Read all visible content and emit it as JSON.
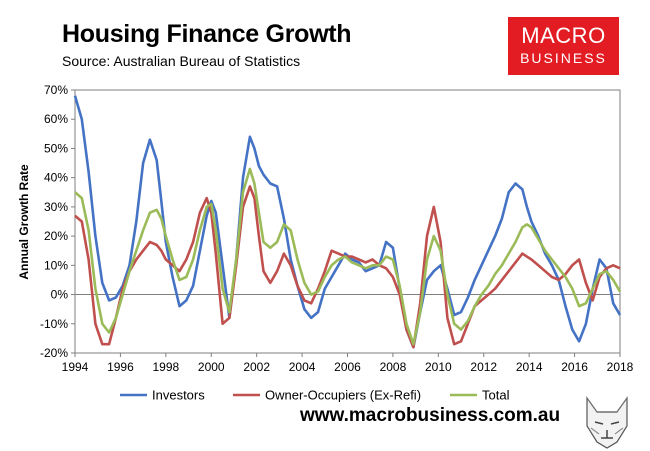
{
  "header": {
    "title": "Housing Finance Growth",
    "subtitle": "Source: Australian Bureau of Statistics",
    "logo_line1": "MACRO",
    "logo_line2": "BUSINESS",
    "website": "www.macrobusiness.com.au"
  },
  "colors": {
    "investors": "#4472c4",
    "owner_occupiers": "#c0504d",
    "total": "#9bbb59",
    "logo_bg": "#e31b23"
  },
  "chart_data": {
    "type": "line",
    "title": "Housing Finance Growth",
    "xlabel": "",
    "ylabel": "Annual Growth Rate",
    "xlim": [
      1994,
      2018
    ],
    "ylim": [
      -20,
      70
    ],
    "xticks": [
      1994,
      1996,
      1998,
      2000,
      2002,
      2004,
      2006,
      2008,
      2010,
      2012,
      2014,
      2016,
      2018
    ],
    "xtick_labels": [
      "1994",
      "1996",
      "1998",
      "2000",
      "2002",
      "2004",
      "2006",
      "2008",
      "2010",
      "2012",
      "2014",
      "2016",
      "2018"
    ],
    "yticks": [
      -20,
      -10,
      0,
      10,
      20,
      30,
      40,
      50,
      60,
      70
    ],
    "ytick_labels": [
      "-20%",
      "-10%",
      "0%",
      "10%",
      "20%",
      "30%",
      "40%",
      "50%",
      "60%",
      "70%"
    ],
    "legend_position": "bottom",
    "series": [
      {
        "name": "Investors",
        "color": "#4472c4",
        "x": [
          1994.0,
          1994.3,
          1994.6,
          1994.9,
          1995.2,
          1995.5,
          1995.8,
          1996.1,
          1996.4,
          1996.7,
          1997.0,
          1997.3,
          1997.6,
          1997.8,
          1998.0,
          1998.3,
          1998.6,
          1998.9,
          1999.2,
          1999.5,
          1999.8,
          2000.0,
          2000.2,
          2000.5,
          2000.8,
          2001.1,
          2001.4,
          2001.7,
          2001.9,
          2002.1,
          2002.3,
          2002.6,
          2002.9,
          2003.2,
          2003.5,
          2003.8,
          2004.1,
          2004.4,
          2004.7,
          2005.0,
          2005.3,
          2005.6,
          2005.9,
          2006.2,
          2006.5,
          2006.8,
          2007.1,
          2007.4,
          2007.7,
          2008.0,
          2008.3,
          2008.6,
          2008.9,
          2009.2,
          2009.5,
          2009.8,
          2010.1,
          2010.4,
          2010.7,
          2011.0,
          2011.3,
          2011.6,
          2011.9,
          2012.2,
          2012.5,
          2012.8,
          2013.1,
          2013.4,
          2013.7,
          2013.9,
          2014.1,
          2014.4,
          2014.7,
          2015.0,
          2015.3,
          2015.6,
          2015.9,
          2016.2,
          2016.5,
          2016.8,
          2017.1,
          2017.4,
          2017.7,
          2018.0
        ],
        "values": [
          68,
          60,
          42,
          20,
          4,
          -2,
          -1,
          3,
          10,
          25,
          45,
          53,
          46,
          32,
          18,
          6,
          -4,
          -2,
          3,
          15,
          27,
          32,
          28,
          10,
          -8,
          12,
          40,
          54,
          50,
          44,
          41,
          38,
          37,
          26,
          12,
          3,
          -5,
          -8,
          -6,
          2,
          6,
          10,
          14,
          12,
          11,
          8,
          9,
          10,
          18,
          16,
          2,
          -12,
          -18,
          -6,
          5,
          8,
          10,
          2,
          -7,
          -6,
          -1,
          5,
          10,
          15,
          20,
          26,
          35,
          38,
          36,
          30,
          25,
          20,
          14,
          10,
          5,
          -4,
          -12,
          -16,
          -10,
          2,
          12,
          9,
          -3,
          -7
        ]
      },
      {
        "name": "Owner-Occupiers (Ex-Refi)",
        "color": "#c0504d",
        "x": [
          1994.0,
          1994.3,
          1994.6,
          1994.9,
          1995.2,
          1995.5,
          1995.8,
          1996.1,
          1996.4,
          1996.7,
          1997.0,
          1997.3,
          1997.6,
          1997.8,
          1998.0,
          1998.3,
          1998.6,
          1998.9,
          1999.2,
          1999.5,
          1999.8,
          2000.0,
          2000.2,
          2000.5,
          2000.8,
          2001.1,
          2001.4,
          2001.7,
          2001.9,
          2002.1,
          2002.3,
          2002.6,
          2002.9,
          2003.2,
          2003.5,
          2003.8,
          2004.1,
          2004.4,
          2004.7,
          2005.0,
          2005.3,
          2005.6,
          2005.9,
          2006.2,
          2006.5,
          2006.8,
          2007.1,
          2007.4,
          2007.7,
          2008.0,
          2008.3,
          2008.6,
          2008.9,
          2009.2,
          2009.5,
          2009.8,
          2010.1,
          2010.4,
          2010.7,
          2011.0,
          2011.3,
          2011.6,
          2011.9,
          2012.2,
          2012.5,
          2012.8,
          2013.1,
          2013.4,
          2013.7,
          2013.9,
          2014.1,
          2014.4,
          2014.7,
          2015.0,
          2015.3,
          2015.6,
          2015.9,
          2016.2,
          2016.5,
          2016.8,
          2017.1,
          2017.4,
          2017.7,
          2018.0
        ],
        "values": [
          27,
          25,
          12,
          -10,
          -17,
          -17,
          -8,
          2,
          8,
          12,
          15,
          18,
          17,
          15,
          12,
          10,
          8,
          12,
          18,
          28,
          33,
          28,
          14,
          -10,
          -8,
          10,
          30,
          37,
          33,
          20,
          8,
          4,
          8,
          14,
          10,
          3,
          -2,
          -3,
          2,
          8,
          15,
          14,
          13,
          13,
          12,
          11,
          12,
          10,
          9,
          6,
          0,
          -12,
          -18,
          -3,
          20,
          30,
          18,
          -8,
          -17,
          -16,
          -10,
          -4,
          -2,
          0,
          2,
          5,
          8,
          11,
          14,
          13,
          12,
          10,
          8,
          6,
          5,
          7,
          10,
          12,
          4,
          -2,
          6,
          9,
          10,
          9
        ]
      },
      {
        "name": "Total",
        "color": "#9bbb59",
        "x": [
          1994.0,
          1994.3,
          1994.6,
          1994.9,
          1995.2,
          1995.5,
          1995.8,
          1996.1,
          1996.4,
          1996.7,
          1997.0,
          1997.3,
          1997.6,
          1997.8,
          1998.0,
          1998.3,
          1998.6,
          1998.9,
          1999.2,
          1999.5,
          1999.8,
          2000.0,
          2000.2,
          2000.5,
          2000.8,
          2001.1,
          2001.4,
          2001.7,
          2001.9,
          2002.1,
          2002.3,
          2002.6,
          2002.9,
          2003.2,
          2003.5,
          2003.8,
          2004.1,
          2004.4,
          2004.7,
          2005.0,
          2005.3,
          2005.6,
          2005.9,
          2006.2,
          2006.5,
          2006.8,
          2007.1,
          2007.4,
          2007.7,
          2008.0,
          2008.3,
          2008.6,
          2008.9,
          2009.2,
          2009.5,
          2009.8,
          2010.1,
          2010.4,
          2010.7,
          2011.0,
          2011.3,
          2011.6,
          2011.9,
          2012.2,
          2012.5,
          2012.8,
          2013.1,
          2013.4,
          2013.7,
          2013.9,
          2014.1,
          2014.4,
          2014.7,
          2015.0,
          2015.3,
          2015.6,
          2015.9,
          2016.2,
          2016.5,
          2016.8,
          2017.1,
          2017.4,
          2017.7,
          2018.0
        ],
        "values": [
          35,
          33,
          22,
          2,
          -10,
          -13,
          -8,
          0,
          8,
          15,
          22,
          28,
          29,
          26,
          20,
          12,
          5,
          6,
          12,
          22,
          30,
          31,
          22,
          2,
          -6,
          12,
          35,
          43,
          38,
          28,
          18,
          16,
          18,
          24,
          22,
          12,
          4,
          0,
          1,
          6,
          10,
          12,
          13,
          11,
          10,
          9,
          10,
          10,
          13,
          12,
          3,
          -10,
          -17,
          -6,
          12,
          20,
          15,
          0,
          -10,
          -12,
          -9,
          -4,
          0,
          3,
          7,
          10,
          14,
          18,
          23,
          24,
          23,
          19,
          15,
          12,
          9,
          6,
          2,
          -4,
          -3,
          2,
          7,
          8,
          5,
          1
        ]
      }
    ]
  }
}
